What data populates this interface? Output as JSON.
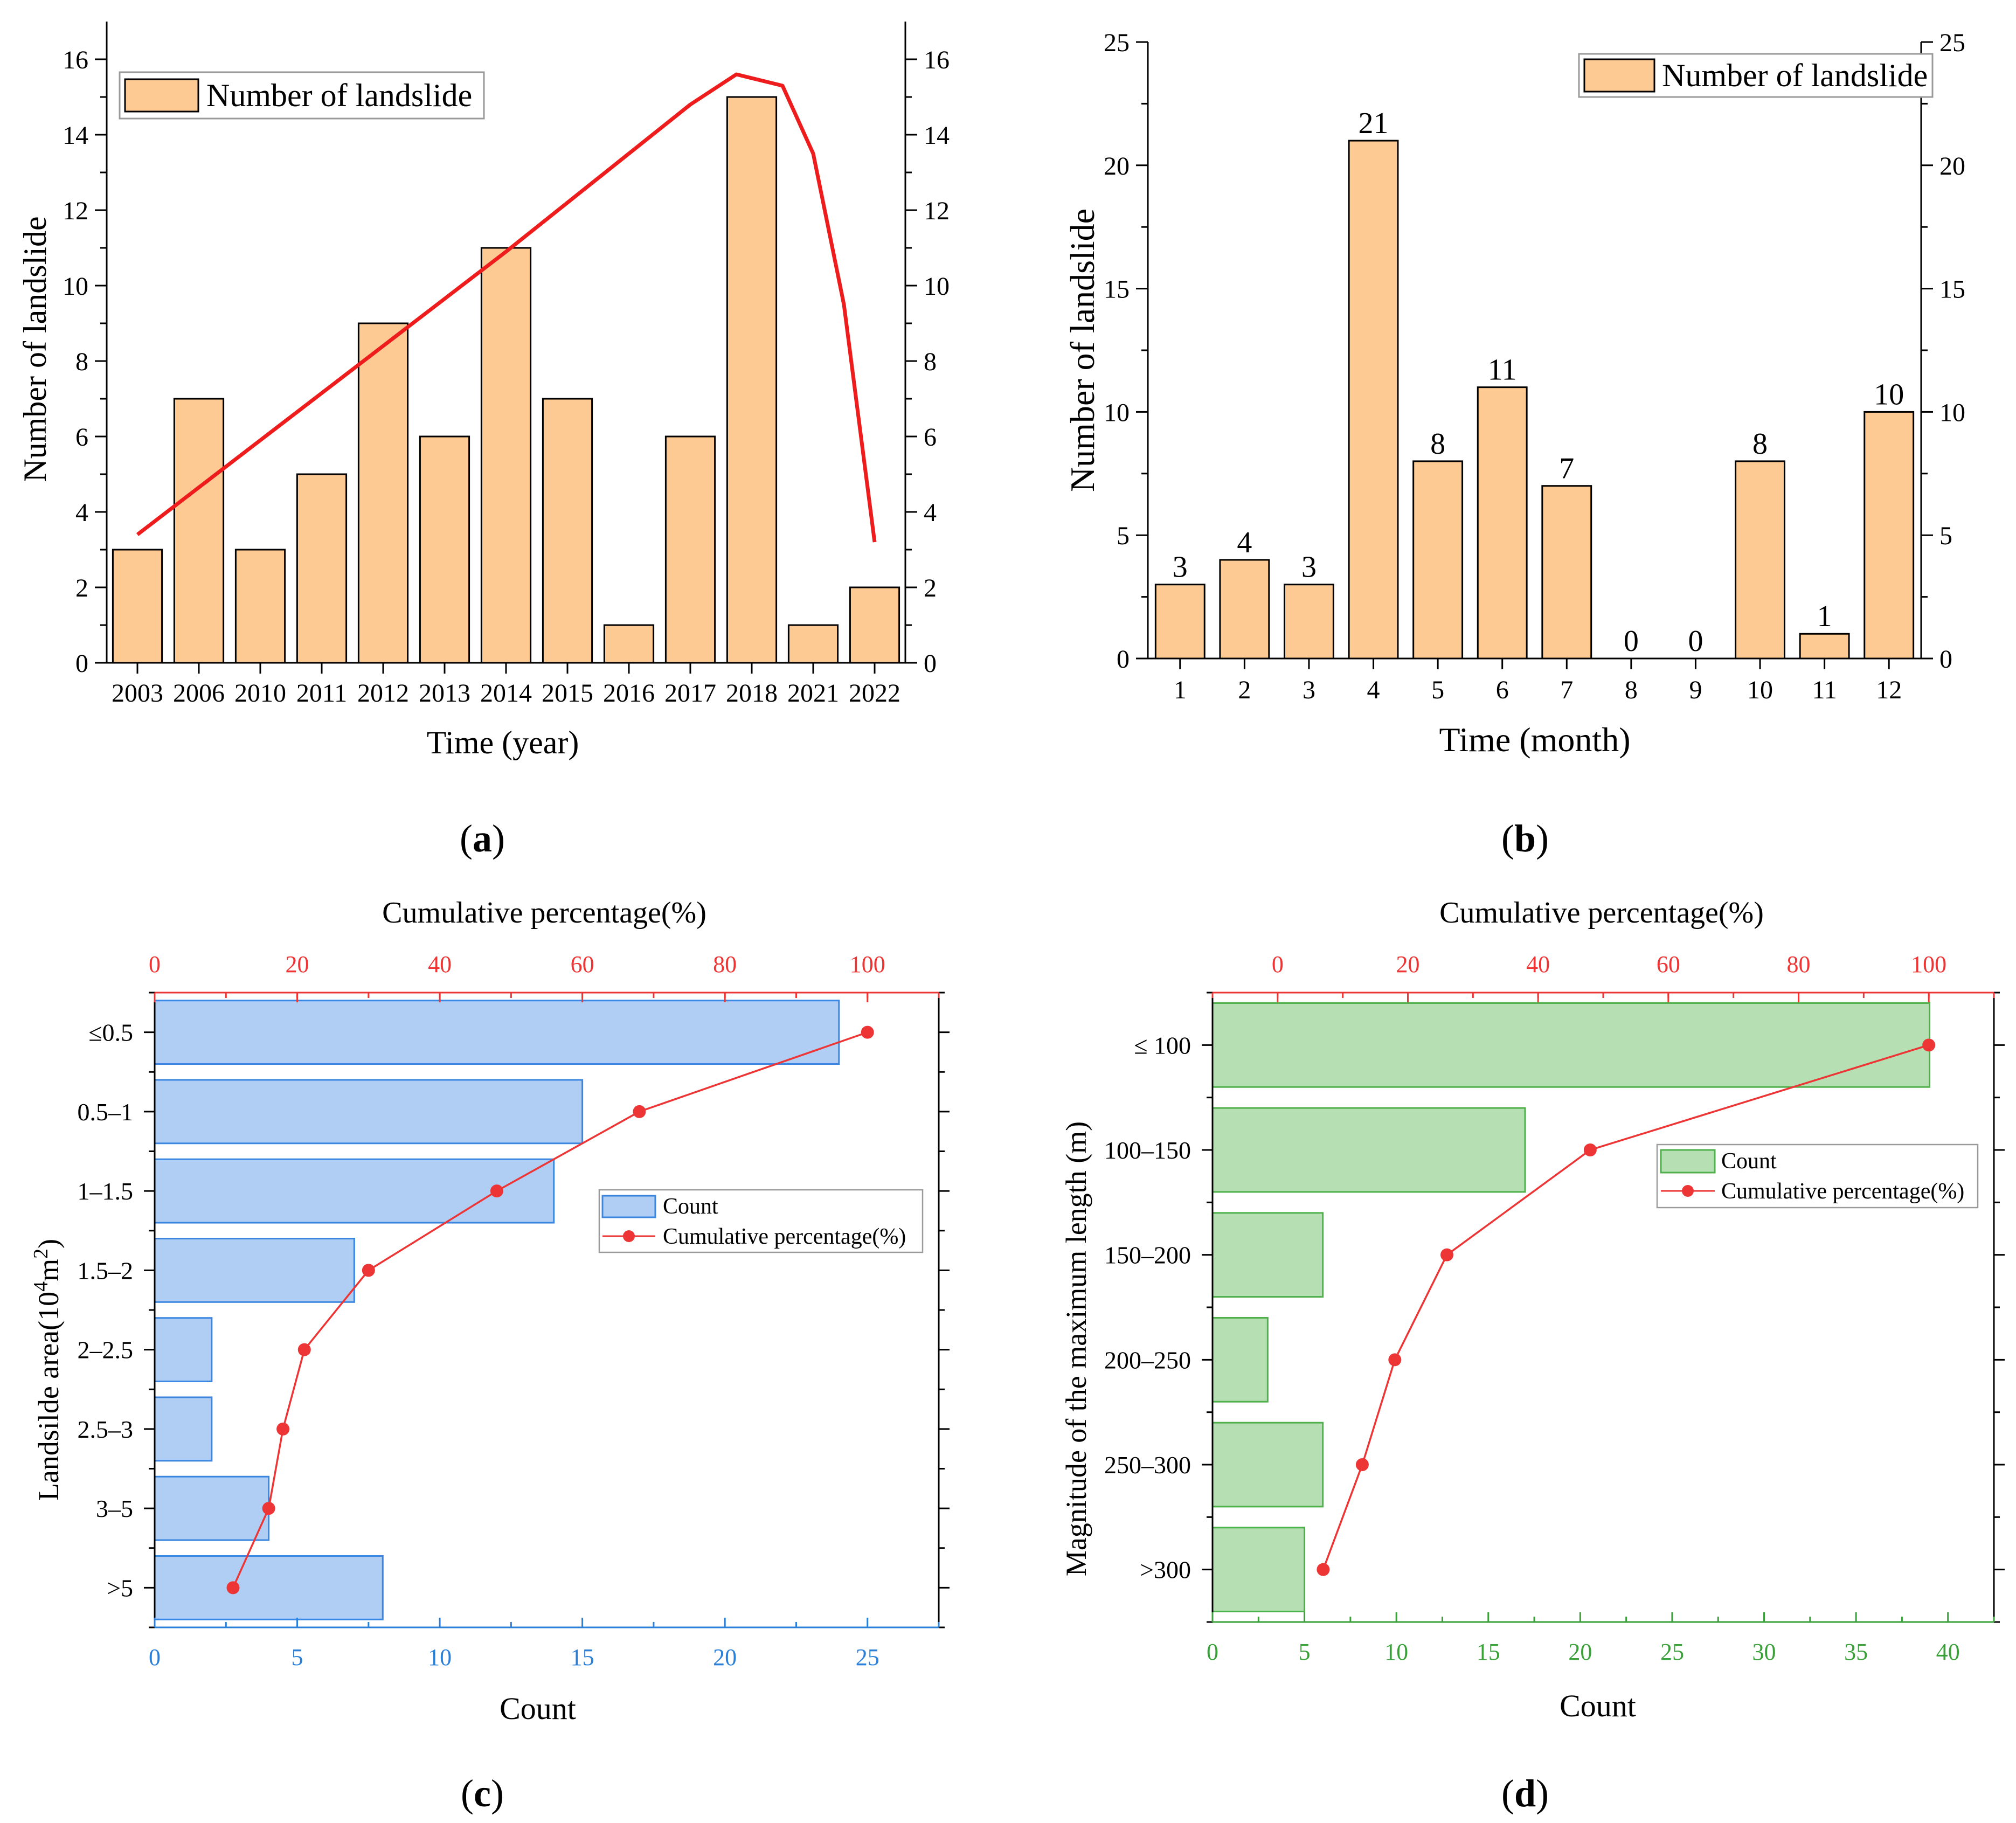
{
  "chart_data": [
    {
      "panel_label": "a",
      "type": "bar",
      "categories": [
        "2003",
        "2006",
        "2010",
        "2011",
        "2012",
        "2013",
        "2014",
        "2015",
        "2016",
        "2017",
        "2018",
        "2021",
        "2022"
      ],
      "values": [
        3,
        7,
        3,
        5,
        9,
        6,
        11,
        7,
        1,
        6,
        15,
        1,
        2
      ],
      "xlabel": "Time (year)",
      "ylabel": "Number of landslide",
      "ylim": [
        0,
        17
      ],
      "yticks": [
        0,
        2,
        4,
        6,
        8,
        10,
        12,
        14,
        16
      ],
      "legend": "Number of landslide",
      "trend_line": {
        "name": "trend",
        "x_index": [
          0,
          1,
          2,
          3,
          4,
          5,
          6,
          7,
          8,
          9,
          9.75,
          10.5,
          11,
          11.5,
          12
        ],
        "values": [
          3.4,
          4.65,
          5.9,
          7.15,
          8.4,
          9.65,
          10.9,
          12.2,
          13.5,
          14.8,
          15.6,
          15.3,
          13.5,
          9.5,
          3.2
        ]
      },
      "colors": {
        "bar": "#fdca93",
        "trend": "#ee1c1c"
      }
    },
    {
      "panel_label": "b",
      "type": "bar",
      "categories": [
        "1",
        "2",
        "3",
        "4",
        "5",
        "6",
        "7",
        "8",
        "9",
        "10",
        "11",
        "12"
      ],
      "values": [
        3,
        4,
        3,
        21,
        8,
        11,
        7,
        0,
        0,
        8,
        1,
        10
      ],
      "data_labels": [
        "3",
        "4",
        "3",
        "21",
        "8",
        "11",
        "7",
        "0",
        "0",
        "8",
        "1",
        "10"
      ],
      "xlabel": "Time (month)",
      "ylabel": "Number of landslide",
      "ylim": [
        0,
        25
      ],
      "yticks": [
        0,
        5,
        10,
        15,
        20,
        25
      ],
      "legend": "Number of landslide",
      "colors": {
        "bar": "#fdca93"
      }
    },
    {
      "panel_label": "c",
      "type": "bar",
      "orientation": "horizontal",
      "categories": [
        "≤0.5",
        "0.5–1",
        "1–1.5",
        "1.5–2",
        "2–2.5",
        "2.5–3",
        "3–5",
        ">5"
      ],
      "series": [
        {
          "name": "Count",
          "values": [
            24,
            15,
            14,
            7,
            2,
            2,
            4,
            8
          ]
        },
        {
          "name": "Cumulative percentage(%)",
          "values": [
            100,
            68,
            48,
            30,
            21,
            18,
            16,
            11
          ]
        }
      ],
      "xlabel": "Count",
      "x2label": "Cumulative percentage(%)",
      "ylabel_prefix": "Landsilde area(10",
      "ylabel_sup1": "4",
      "ylabel_mid": "m",
      "ylabel_sup2": "2",
      "ylabel_suffix": ")",
      "xlim": [
        0,
        27.5
      ],
      "xticks": [
        0,
        5,
        10,
        15,
        20,
        25
      ],
      "x2lim": [
        0,
        110
      ],
      "x2ticks": [
        0,
        20,
        40,
        60,
        80,
        100
      ],
      "colors": {
        "bar_fill": "#b0cdf4",
        "bar_edge": "#3a86e0",
        "axis_bottom": "#2a7fd8",
        "line": "#ee3535"
      }
    },
    {
      "panel_label": "d",
      "type": "bar",
      "orientation": "horizontal",
      "categories": [
        "≤ 100",
        "100–150",
        "150–200",
        "200–250",
        "250–300",
        ">300"
      ],
      "series": [
        {
          "name": "Count",
          "values": [
            39,
            17,
            6,
            3,
            6,
            5
          ]
        },
        {
          "name": "Cumulative percentage(%)",
          "values": [
            100,
            48,
            26,
            18,
            13,
            7
          ]
        }
      ],
      "xlabel": "Count",
      "x2label": "Cumulative percentage(%)",
      "ylabel": "Magnitude of the maximum length (m)",
      "xlim": [
        0,
        42.5
      ],
      "xticks": [
        0,
        5,
        10,
        15,
        20,
        25,
        30,
        35,
        40
      ],
      "x2lim": [
        -10,
        110
      ],
      "x2ticks": [
        0,
        20,
        40,
        60,
        80,
        100
      ],
      "colors": {
        "bar_fill": "#b6dfb4",
        "bar_edge": "#4fb04c",
        "axis_bottom": "#3aa03a",
        "line": "#ee3535"
      }
    }
  ]
}
